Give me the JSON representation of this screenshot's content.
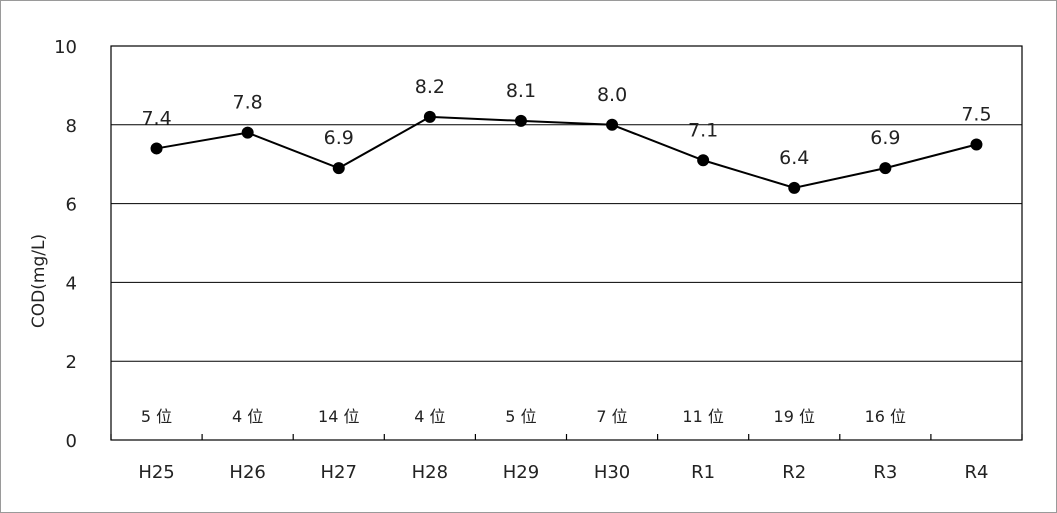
{
  "chart_data": {
    "type": "line",
    "title": "",
    "xlabel": "",
    "ylabel": "COD(mg/L)",
    "ylim": [
      0,
      10
    ],
    "yticks": [
      0,
      2,
      4,
      6,
      8,
      10
    ],
    "grid": true,
    "categories": [
      "H25",
      "H26",
      "H27",
      "H28",
      "H29",
      "H30",
      "R1",
      "R2",
      "R3",
      "R4"
    ],
    "series": [
      {
        "values": [
          7.4,
          7.8,
          6.9,
          8.2,
          8.1,
          8.0,
          7.1,
          6.4,
          6.9,
          7.5
        ],
        "color": "#000000"
      }
    ],
    "data_labels": [
      "7.4",
      "7.8",
      "6.9",
      "8.2",
      "8.1",
      "8.0",
      "7.1",
      "6.4",
      "6.9",
      "7.5"
    ],
    "annotations": [
      "5 位",
      "4 位",
      "14 位",
      "4 位",
      "5 位",
      "7 位",
      "11 位",
      "19 位",
      "16 位",
      ""
    ]
  }
}
